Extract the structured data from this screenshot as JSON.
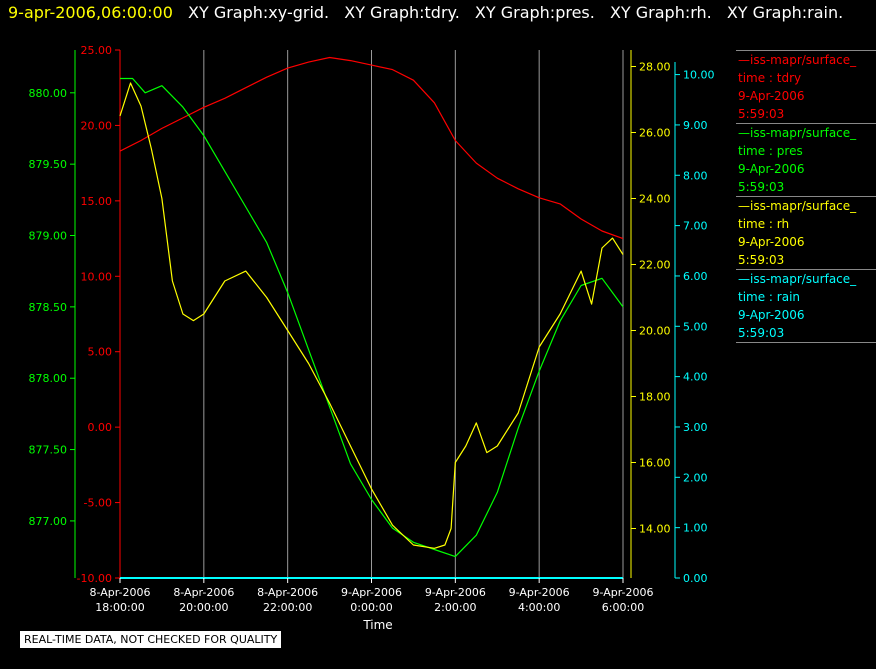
{
  "header": {
    "timestamp": "9-apr-2006,06:00:00",
    "graph_titles": [
      "XY Graph:xy-grid.",
      "XY Graph:tdry.",
      "XY Graph:pres.",
      "XY Graph:rh.",
      "XY Graph:rain."
    ]
  },
  "disclaimer": "REAL-TIME DATA, NOT CHECKED FOR QUALITY",
  "legend": [
    {
      "name": "iss-mapr/surface_",
      "label": "time : tdry",
      "date": "9-Apr-2006",
      "time": "5:59:03",
      "color": "#ff0000"
    },
    {
      "name": "iss-mapr/surface_",
      "label": "time : pres",
      "date": "9-Apr-2006",
      "time": "5:59:03",
      "color": "#00ff00"
    },
    {
      "name": "iss-mapr/surface_",
      "label": "time : rh",
      "date": "9-Apr-2006",
      "time": "5:59:03",
      "color": "#ffff00"
    },
    {
      "name": "iss-mapr/surface_",
      "label": "time : rain",
      "date": "9-Apr-2006",
      "time": "5:59:03",
      "color": "#00ffff"
    }
  ],
  "chart_data": {
    "type": "line",
    "xlabel": "Time",
    "x_ticks": [
      {
        "date": "8-Apr-2006",
        "time": "18:00:00",
        "hour": 0
      },
      {
        "date": "8-Apr-2006",
        "time": "20:00:00",
        "hour": 2
      },
      {
        "date": "8-Apr-2006",
        "time": "22:00:00",
        "hour": 4
      },
      {
        "date": "9-Apr-2006",
        "time": "0:00:00",
        "hour": 6
      },
      {
        "date": "9-Apr-2006",
        "time": "2:00:00",
        "hour": 8
      },
      {
        "date": "9-Apr-2006",
        "time": "4:00:00",
        "hour": 10
      },
      {
        "date": "9-Apr-2006",
        "time": "6:00:00",
        "hour": 12
      }
    ],
    "x_range": [
      "8-Apr-2006 18:00:00",
      "9-Apr-2006 6:00:00"
    ],
    "grid": "vertical",
    "axes": {
      "tdry": {
        "color": "#ff0000",
        "ylim": [
          -10,
          25
        ],
        "ticks": [
          "25.00",
          "20.00",
          "15.00",
          "10.00",
          "5.00",
          "0.00",
          "-5.00",
          "-10.00"
        ]
      },
      "pres": {
        "color": "#00ff00",
        "ylim": [
          876.6,
          880.3
        ],
        "ticks": [
          "880.00",
          "879.50",
          "879.00",
          "878.50",
          "878.00",
          "877.50",
          "877.00"
        ]
      },
      "rh": {
        "color": "#ffff00",
        "ylim": [
          12.5,
          28.5
        ],
        "ticks": [
          "28.00",
          "26.00",
          "24.00",
          "22.00",
          "20.00",
          "18.00",
          "16.00",
          "14.00"
        ]
      },
      "rain": {
        "color": "#00ffff",
        "ylim": [
          0,
          10.25
        ],
        "ticks": [
          "10.00",
          "9.00",
          "8.00",
          "7.00",
          "6.00",
          "5.00",
          "4.00",
          "3.00",
          "2.00",
          "1.00",
          "0.00"
        ]
      }
    },
    "series": [
      {
        "name": "tdry",
        "axis": "tdry",
        "color": "#ff0000",
        "x": [
          0,
          0.5,
          1,
          1.5,
          2,
          2.5,
          3,
          3.5,
          4,
          4.5,
          5,
          5.5,
          6,
          6.5,
          7,
          7.5,
          8,
          8.5,
          9,
          9.5,
          10,
          10.5,
          11,
          11.5,
          12
        ],
        "y": [
          18.3,
          19.0,
          19.8,
          20.5,
          21.2,
          21.8,
          22.5,
          23.2,
          23.8,
          24.2,
          24.5,
          24.3,
          24.0,
          23.7,
          23.0,
          21.5,
          19.0,
          17.5,
          16.5,
          15.8,
          15.2,
          14.8,
          13.8,
          13.0,
          12.5
        ]
      },
      {
        "name": "pres",
        "axis": "pres",
        "color": "#00ff00",
        "x": [
          0,
          0.3,
          0.6,
          1,
          1.5,
          2,
          2.5,
          3,
          3.5,
          4,
          4.5,
          5,
          5.5,
          6,
          6.5,
          7,
          7.5,
          8,
          8.5,
          9,
          9.5,
          10,
          10.5,
          11,
          11.5,
          12
        ],
        "y": [
          880.1,
          880.1,
          880.0,
          880.05,
          879.9,
          879.7,
          879.45,
          879.2,
          878.95,
          878.6,
          878.2,
          877.8,
          877.4,
          877.15,
          876.95,
          876.85,
          876.8,
          876.75,
          876.9,
          877.2,
          877.65,
          878.05,
          878.4,
          878.65,
          878.7,
          878.5
        ]
      },
      {
        "name": "rh",
        "axis": "rh",
        "color": "#ffff00",
        "x": [
          0,
          0.25,
          0.5,
          0.75,
          1,
          1.25,
          1.5,
          1.75,
          2,
          2.5,
          3,
          3.5,
          4,
          4.5,
          5,
          5.5,
          6,
          6.5,
          7,
          7.5,
          7.75,
          7.9,
          8,
          8.25,
          8.5,
          8.75,
          9,
          9.5,
          10,
          10.5,
          11,
          11.25,
          11.5,
          11.75,
          12
        ],
        "y": [
          26.5,
          27.5,
          26.8,
          25.5,
          24.0,
          21.5,
          20.5,
          20.3,
          20.5,
          21.5,
          21.8,
          21.0,
          20.0,
          19.0,
          17.8,
          16.5,
          15.2,
          14.1,
          13.5,
          13.4,
          13.5,
          14.0,
          16.0,
          16.5,
          17.2,
          16.3,
          16.5,
          17.5,
          19.5,
          20.5,
          21.8,
          20.8,
          22.5,
          22.8,
          22.3
        ]
      },
      {
        "name": "rain",
        "axis": "rain",
        "color": "#00ffff",
        "x": [
          0,
          12
        ],
        "y": [
          0,
          0
        ]
      }
    ]
  }
}
